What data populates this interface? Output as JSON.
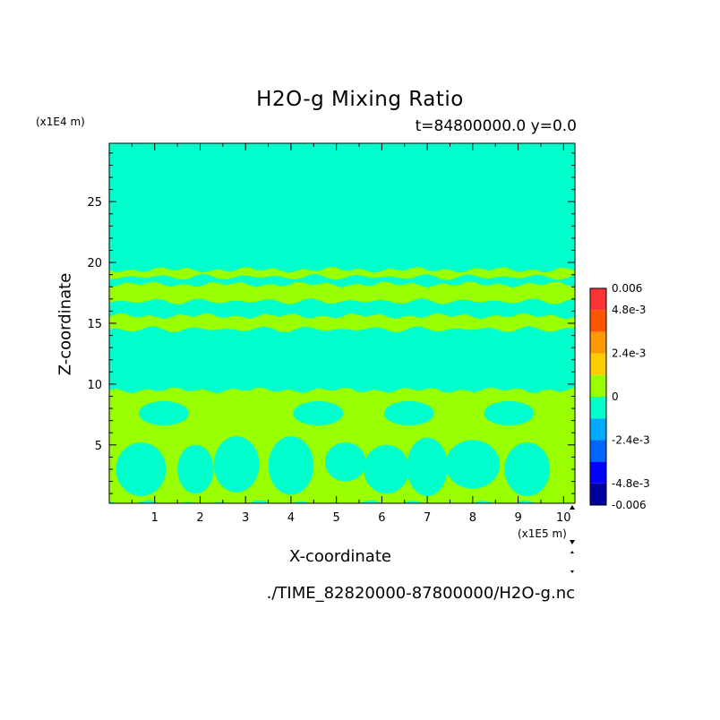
{
  "chart_data": {
    "type": "heatmap",
    "title": "H2O-g Mixing Ratio",
    "subtitle": "t=84800000.0 y=0.0",
    "xlabel": "X-coordinate",
    "ylabel": "Z-coordinate",
    "x_unit": "(x1E5 m)",
    "z_unit": "(x1E4 m)",
    "source_file": "./TIME_82820000-87800000/H2O-g.nc",
    "xlim": [
      0,
      10.25
    ],
    "ylim": [
      0.2,
      29.8
    ],
    "x_ticks": [
      1,
      2,
      3,
      4,
      5,
      6,
      7,
      8,
      9,
      10
    ],
    "y_ticks": [
      5,
      10,
      15,
      20,
      25
    ],
    "background_level_color": "#00ffcc",
    "positive_level_color": "#99ff00",
    "colorbar": {
      "min": -0.006,
      "max": 0.006,
      "levels": [
        {
          "from": -0.006,
          "to": -0.0048,
          "color": "#0000a0"
        },
        {
          "from": -0.0048,
          "to": -0.0036,
          "color": "#0000ff"
        },
        {
          "from": -0.0036,
          "to": -0.0024,
          "color": "#0066ff"
        },
        {
          "from": -0.0024,
          "to": -0.0012,
          "color": "#00aaff"
        },
        {
          "from": -0.0012,
          "to": 0,
          "color": "#00ffcc"
        },
        {
          "from": 0,
          "to": 0.0012,
          "color": "#99ff00"
        },
        {
          "from": 0.0012,
          "to": 0.0024,
          "color": "#ffcc00"
        },
        {
          "from": 0.0024,
          "to": 0.0036,
          "color": "#ff9900"
        },
        {
          "from": 0.0036,
          "to": 0.0048,
          "color": "#ff5500"
        },
        {
          "from": 0.0048,
          "to": 0.006,
          "color": "#ff3333"
        }
      ],
      "labels": [
        {
          "value": 0.006,
          "text": "0.006"
        },
        {
          "value": 0.0048,
          "text": "4.8e-3"
        },
        {
          "value": 0.0024,
          "text": "2.4e-3"
        },
        {
          "value": 0,
          "text": "0"
        },
        {
          "value": -0.0024,
          "text": "-2.4e-3"
        },
        {
          "value": -0.0048,
          "text": "-4.8e-3"
        },
        {
          "value": -0.006,
          "text": "-0.006"
        }
      ]
    },
    "positive_bands": [
      {
        "z_bottom": 18.8,
        "z_top": 19.4
      },
      {
        "z_bottom": 16.8,
        "z_top": 18.2
      },
      {
        "z_bottom": 14.5,
        "z_top": 15.6
      },
      {
        "z_bottom": 0.2,
        "z_top": 9.5
      }
    ],
    "negative_pockets": [
      {
        "x": 0.7,
        "z": 3.0,
        "rx": 0.55,
        "rz": 2.2
      },
      {
        "x": 1.9,
        "z": 3.0,
        "rx": 0.4,
        "rz": 2.0
      },
      {
        "x": 2.8,
        "z": 3.4,
        "rx": 0.5,
        "rz": 2.3
      },
      {
        "x": 4.0,
        "z": 3.3,
        "rx": 0.5,
        "rz": 2.4
      },
      {
        "x": 5.2,
        "z": 3.6,
        "rx": 0.45,
        "rz": 1.6
      },
      {
        "x": 6.1,
        "z": 3.0,
        "rx": 0.5,
        "rz": 2.0
      },
      {
        "x": 7.0,
        "z": 3.2,
        "rx": 0.45,
        "rz": 2.4
      },
      {
        "x": 8.0,
        "z": 3.4,
        "rx": 0.6,
        "rz": 2.0
      },
      {
        "x": 9.2,
        "z": 3.0,
        "rx": 0.5,
        "rz": 2.2
      },
      {
        "x": 1.2,
        "z": 7.6,
        "rx": 0.55,
        "rz": 1.0
      },
      {
        "x": 4.6,
        "z": 7.6,
        "rx": 0.55,
        "rz": 1.0
      },
      {
        "x": 6.6,
        "z": 7.6,
        "rx": 0.55,
        "rz": 1.0
      },
      {
        "x": 8.8,
        "z": 7.6,
        "rx": 0.55,
        "rz": 1.0
      }
    ]
  }
}
